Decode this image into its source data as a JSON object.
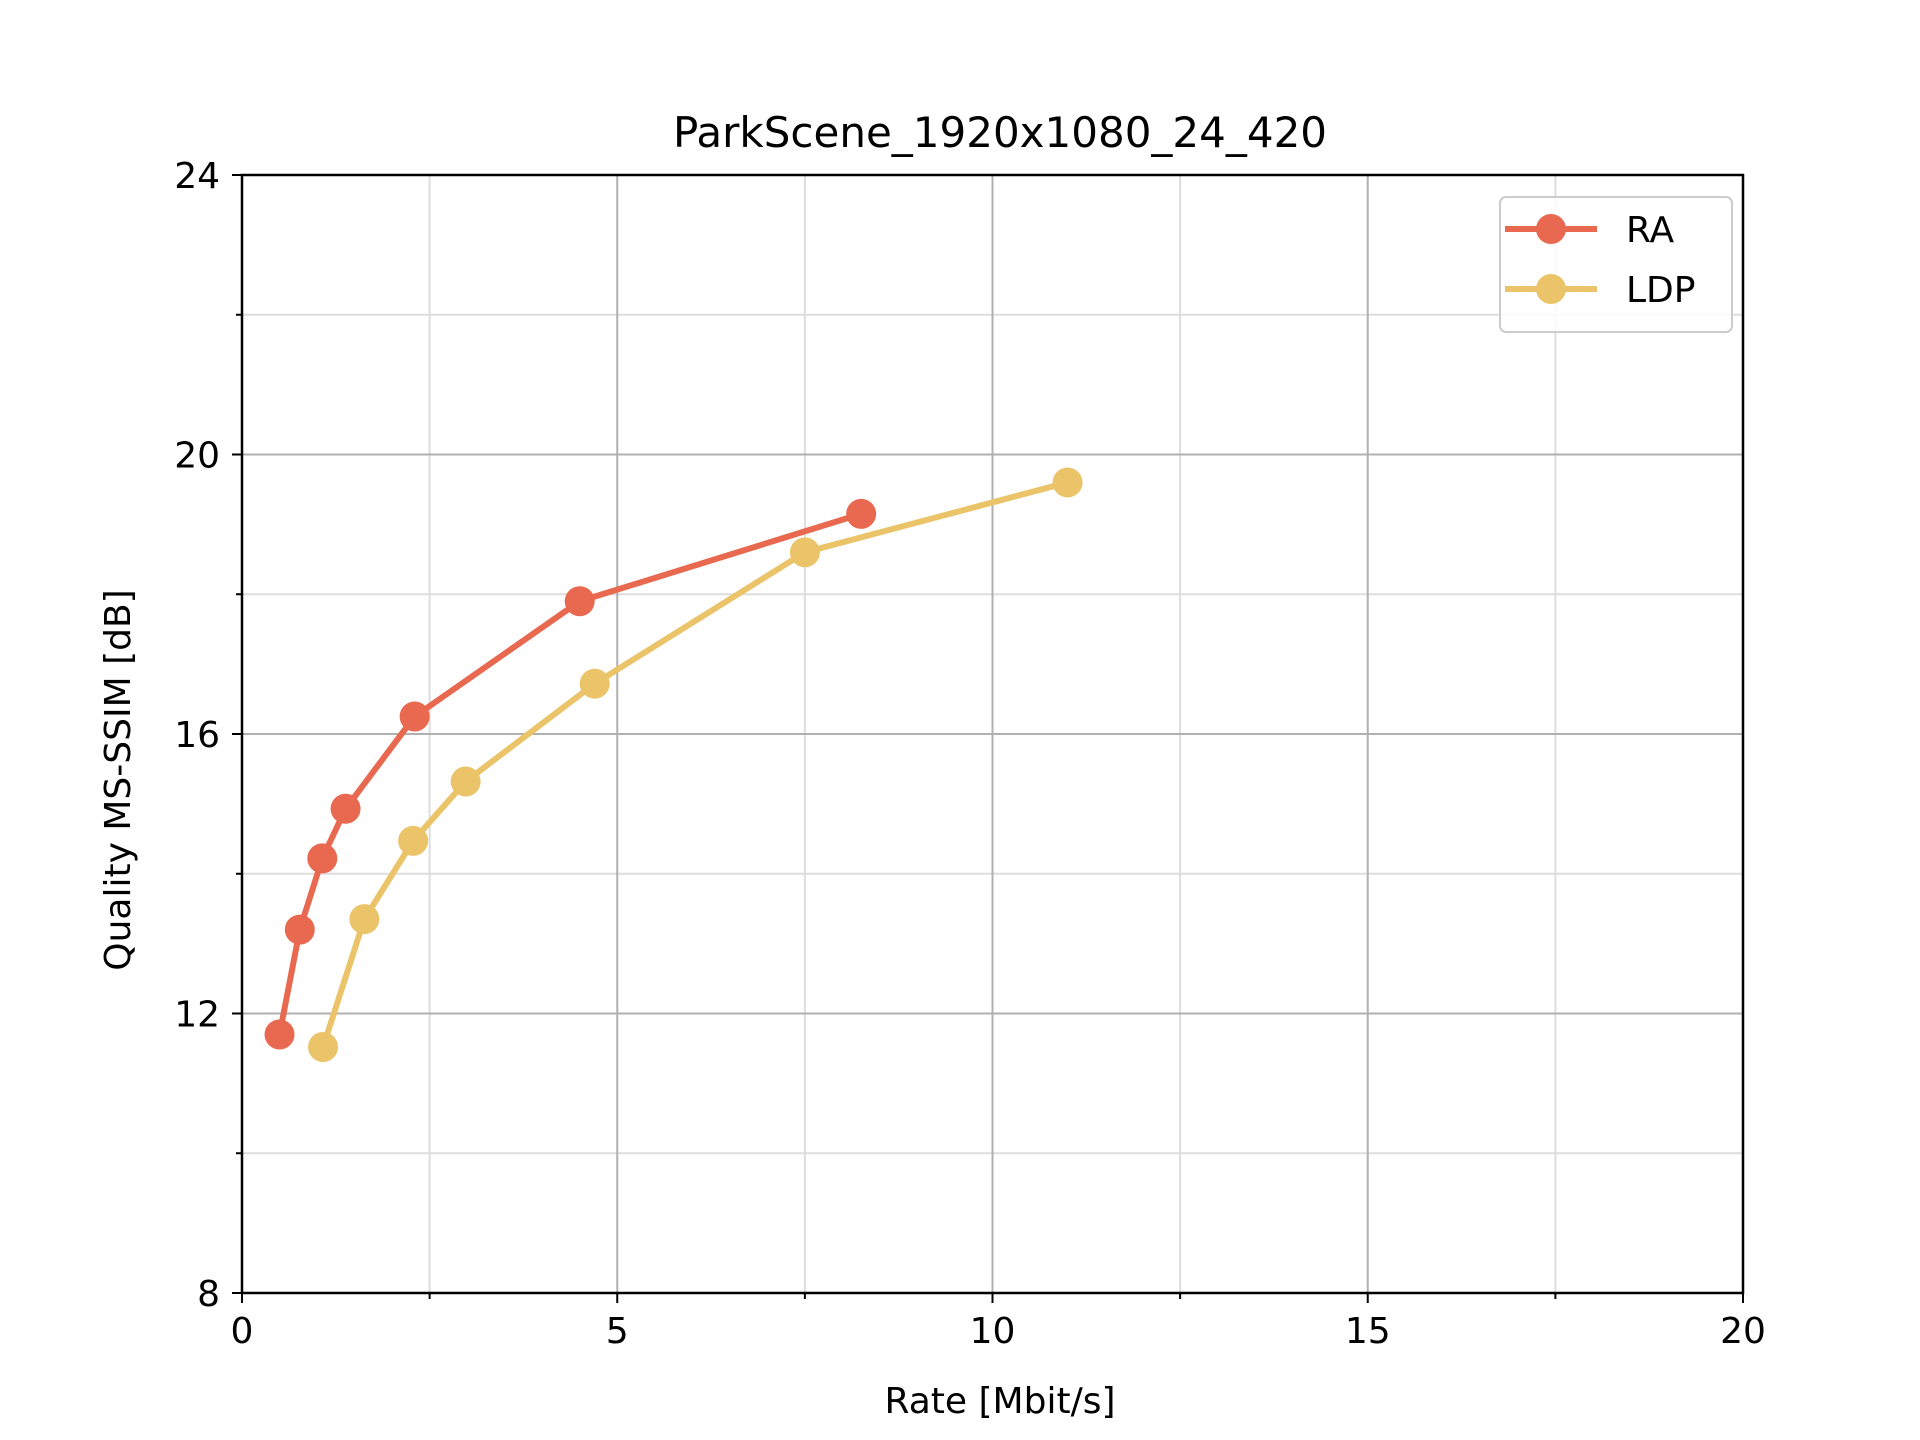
{
  "chart_data": {
    "type": "line",
    "title": "ParkScene_1920x1080_24_420",
    "xlabel": "Rate [Mbit/s]",
    "ylabel": "Quality MS-SSIM [dB]",
    "xlim": [
      0,
      20
    ],
    "ylim": [
      8,
      24
    ],
    "xticks": [
      0,
      5,
      10,
      15,
      20
    ],
    "yticks": [
      8,
      12,
      16,
      20,
      24
    ],
    "x_minor_ticks": [
      2.5,
      7.5,
      12.5,
      17.5
    ],
    "y_minor_ticks": [
      10,
      14,
      18,
      22
    ],
    "grid": true,
    "legend_position": "top-right",
    "series": [
      {
        "name": "RA",
        "color": "#E8694F",
        "points": [
          {
            "x": 0.5,
            "y": 11.7
          },
          {
            "x": 0.77,
            "y": 13.2
          },
          {
            "x": 1.07,
            "y": 14.22
          },
          {
            "x": 1.38,
            "y": 14.93
          },
          {
            "x": 2.3,
            "y": 16.25
          },
          {
            "x": 4.5,
            "y": 17.9
          },
          {
            "x": 8.25,
            "y": 19.15
          }
        ]
      },
      {
        "name": "LDP",
        "color": "#EBC46A",
        "points": [
          {
            "x": 1.08,
            "y": 11.52
          },
          {
            "x": 1.63,
            "y": 13.35
          },
          {
            "x": 2.28,
            "y": 14.47
          },
          {
            "x": 2.98,
            "y": 15.32
          },
          {
            "x": 4.7,
            "y": 16.72
          },
          {
            "x": 7.5,
            "y": 18.6
          },
          {
            "x": 11.0,
            "y": 19.6
          }
        ]
      }
    ]
  }
}
